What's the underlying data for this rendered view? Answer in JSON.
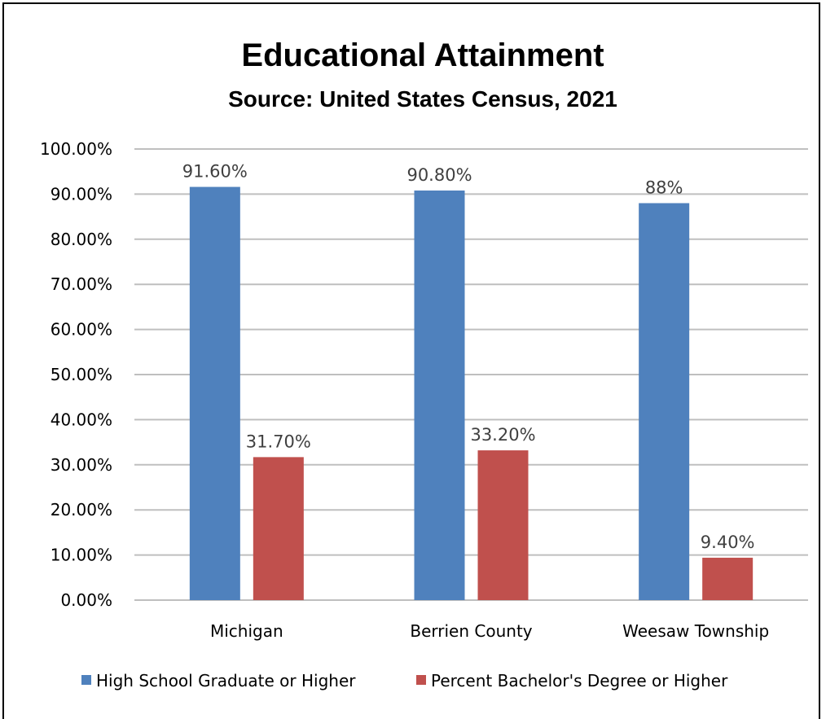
{
  "chart_data": {
    "type": "bar",
    "title": "Educational Attainment",
    "subtitle": "Source: United States Census, 2021",
    "categories": [
      "Michigan",
      "Berrien County",
      "Weesaw Township"
    ],
    "series": [
      {
        "name": "High School Graduate or Higher",
        "values": [
          91.6,
          90.8,
          88
        ],
        "labels": [
          "91.60%",
          "90.80%",
          "88%"
        ],
        "color": "#4F81BD"
      },
      {
        "name": "Percent Bachelor's Degree or Higher",
        "values": [
          31.7,
          33.2,
          9.4
        ],
        "labels": [
          "31.70%",
          "33.20%",
          "9.40%"
        ],
        "color": "#C0504D"
      }
    ],
    "yticks": [
      "0.00%",
      "10.00%",
      "20.00%",
      "30.00%",
      "40.00%",
      "50.00%",
      "60.00%",
      "70.00%",
      "80.00%",
      "90.00%",
      "100.00%"
    ],
    "ylim": [
      0,
      100
    ],
    "grid": true,
    "gridline_color": "#BFBFBF",
    "legend_position": "bottom"
  }
}
